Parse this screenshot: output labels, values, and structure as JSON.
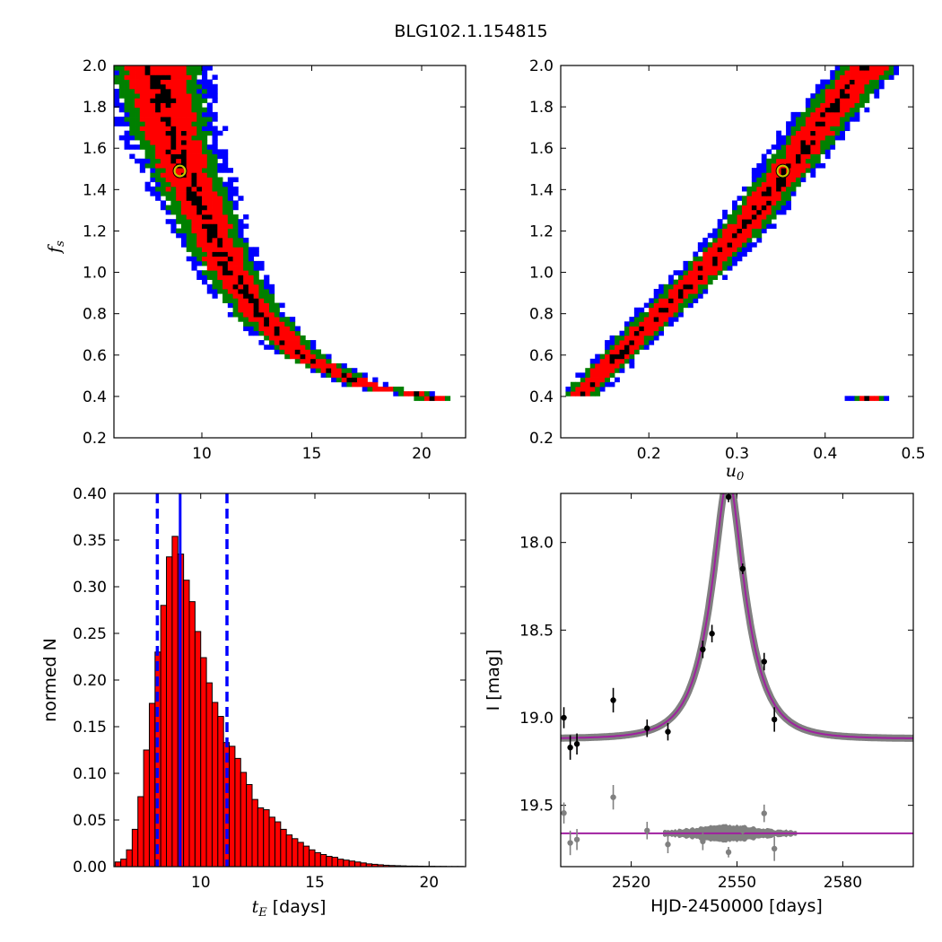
{
  "figure": {
    "title": "BLG102.1.154815"
  },
  "colors": {
    "level1": "#000000",
    "level2": "#ff0000",
    "level3": "#008000",
    "level4": "#0000ff",
    "marker_edge": "#c8c800",
    "hist_fill": "#ff0000",
    "hist_edge": "#000000",
    "median_line": "#0000ff",
    "model_line": "#a020a0",
    "model_band": "#808080",
    "data_points": "#000000",
    "residual_points": "#808080"
  },
  "chart_data": [
    {
      "id": "fs_vs_tE",
      "type": "heatmap",
      "title": "",
      "xlabel": "",
      "ylabel": "f_s",
      "ylabel_symbol": "f",
      "ylabel_sub": "s",
      "xlim": [
        6,
        22
      ],
      "ylim": [
        0.2,
        2.0
      ],
      "xticks": [
        "10",
        "15",
        "20"
      ],
      "yticks": [
        "0.2",
        "0.4",
        "0.6",
        "0.8",
        "1.0",
        "1.2",
        "1.4",
        "1.6",
        "1.8",
        "2.0"
      ],
      "levels": [
        "black",
        "red",
        "green",
        "blue"
      ],
      "ridge": [
        [
          7.9,
          2.0
        ],
        [
          8.3,
          1.8
        ],
        [
          8.8,
          1.6
        ],
        [
          9.6,
          1.4
        ],
        [
          10.4,
          1.2
        ],
        [
          11.3,
          1.0
        ],
        [
          12.6,
          0.8
        ],
        [
          14.5,
          0.6
        ],
        [
          17.5,
          0.45
        ],
        [
          20.5,
          0.4
        ]
      ],
      "best_fit": {
        "x": 9.0,
        "y": 1.49
      }
    },
    {
      "id": "fs_vs_u0",
      "type": "heatmap",
      "title": "",
      "xlabel": "u_0",
      "xlabel_symbol": "u",
      "xlabel_sub": "0",
      "ylabel": "",
      "xlim": [
        0.1,
        0.5
      ],
      "ylim": [
        0.2,
        2.0
      ],
      "xticks": [
        "0.2",
        "0.3",
        "0.4",
        "0.5"
      ],
      "yticks": [
        "0.2",
        "0.4",
        "0.6",
        "0.8",
        "1.0",
        "1.2",
        "1.4",
        "1.6",
        "1.8",
        "2.0"
      ],
      "levels": [
        "black",
        "red",
        "green",
        "blue"
      ],
      "ridge": [
        [
          0.12,
          0.4
        ],
        [
          0.2,
          0.75
        ],
        [
          0.26,
          1.0
        ],
        [
          0.3,
          1.18
        ],
        [
          0.35,
          1.45
        ],
        [
          0.4,
          1.75
        ],
        [
          0.45,
          2.0
        ]
      ],
      "best_fit": {
        "x": 0.352,
        "y": 1.49
      }
    },
    {
      "id": "tE_histogram",
      "type": "bar",
      "title": "",
      "xlabel": "t_E [days]",
      "xlabel_symbol": "t",
      "xlabel_sub": "E",
      "xlabel_suffix": " [days]",
      "ylabel": "normed N",
      "xlim": [
        6.2,
        21.6
      ],
      "ylim": [
        0,
        0.4
      ],
      "xticks": [
        "10",
        "15",
        "20"
      ],
      "yticks": [
        "0.00",
        "0.05",
        "0.10",
        "0.15",
        "0.20",
        "0.25",
        "0.30",
        "0.35",
        "0.40"
      ],
      "bin_start": 6.25,
      "bin_width": 0.25,
      "values": [
        0.005,
        0.008,
        0.018,
        0.04,
        0.075,
        0.125,
        0.175,
        0.23,
        0.28,
        0.332,
        0.354,
        0.335,
        0.307,
        0.284,
        0.252,
        0.224,
        0.197,
        0.176,
        0.161,
        0.133,
        0.129,
        0.116,
        0.101,
        0.088,
        0.072,
        0.063,
        0.061,
        0.053,
        0.048,
        0.04,
        0.034,
        0.03,
        0.026,
        0.022,
        0.018,
        0.015,
        0.013,
        0.011,
        0.01,
        0.008,
        0.007,
        0.006,
        0.005,
        0.004,
        0.003,
        0.0025,
        0.002,
        0.0015,
        0.0012,
        0.001,
        0.0008,
        0.0006,
        0.0006,
        0.0005,
        0.0004,
        0.0004,
        0.0003,
        0.0003,
        0.0002,
        0.0002,
        0.0002
      ],
      "median": 9.1,
      "interval": [
        8.1,
        11.15
      ]
    },
    {
      "id": "light_curve",
      "type": "scatter",
      "title": "",
      "xlabel": "HJD-2450000 [days]",
      "ylabel": "I [mag]",
      "xlim": [
        2500,
        2600
      ],
      "ylim": [
        19.85,
        17.72
      ],
      "xticks": [
        "2520",
        "2550",
        "2580"
      ],
      "yticks": [
        "18.0",
        "18.5",
        "19.0",
        "19.5"
      ],
      "model": {
        "t0": 2547.5,
        "tE": 9.0,
        "u0": 0.352,
        "fs": 1.49,
        "baseline": 19.12
      },
      "residual_offset": 19.66,
      "points": [
        {
          "x": 2500.9,
          "y": 19.0,
          "err": 0.06
        },
        {
          "x": 2502.7,
          "y": 19.17,
          "err": 0.07
        },
        {
          "x": 2504.6,
          "y": 19.15,
          "err": 0.06
        },
        {
          "x": 2514.9,
          "y": 18.9,
          "err": 0.07
        },
        {
          "x": 2524.5,
          "y": 19.06,
          "err": 0.05
        },
        {
          "x": 2530.4,
          "y": 19.08,
          "err": 0.05
        },
        {
          "x": 2540.3,
          "y": 18.61,
          "err": 0.05
        },
        {
          "x": 2542.9,
          "y": 18.52,
          "err": 0.05
        },
        {
          "x": 2547.6,
          "y": 17.74,
          "err": 0.03
        },
        {
          "x": 2551.6,
          "y": 18.15,
          "err": 0.03
        },
        {
          "x": 2557.7,
          "y": 18.68,
          "err": 0.05
        },
        {
          "x": 2560.6,
          "y": 19.01,
          "err": 0.07
        }
      ]
    }
  ]
}
